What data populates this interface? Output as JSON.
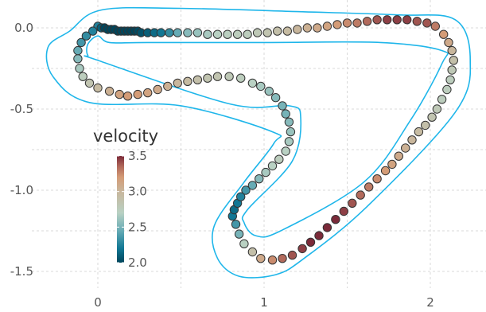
{
  "chart_data": {
    "type": "scatter",
    "title": "",
    "xlabel": "",
    "ylabel": "",
    "xlim": [
      -0.3,
      2.3
    ],
    "ylim": [
      -1.7,
      0.17
    ],
    "x_ticks": [
      {
        "value": 0,
        "label": "0"
      },
      {
        "value": 1,
        "label": "1"
      },
      {
        "value": 2,
        "label": "2"
      }
    ],
    "y_ticks": [
      {
        "value": 0.0,
        "label": "0.0"
      },
      {
        "value": -0.5,
        "label": "-0.5"
      },
      {
        "value": -1.0,
        "label": "-1.0"
      },
      {
        "value": -1.5,
        "label": "-1.5"
      }
    ],
    "grid": true,
    "legend": {
      "title": "velocity",
      "placement": "inside-left",
      "range": [
        2.0,
        3.5
      ],
      "ticks": [
        {
          "value": 3.5,
          "label": "3.5"
        },
        {
          "value": 3.0,
          "label": "3.0"
        },
        {
          "value": 2.5,
          "label": "2.5"
        },
        {
          "value": 2.0,
          "label": "2.0"
        }
      ]
    },
    "colorscale": [
      {
        "v": 2.0,
        "color": "#00465c"
      },
      {
        "v": 2.2,
        "color": "#117794"
      },
      {
        "v": 2.45,
        "color": "#66abb5"
      },
      {
        "v": 2.7,
        "color": "#b9d1c3"
      },
      {
        "v": 3.0,
        "color": "#c8b69c"
      },
      {
        "v": 3.2,
        "color": "#d49c77"
      },
      {
        "v": 3.35,
        "color": "#b26a5c"
      },
      {
        "v": 3.5,
        "color": "#7b2a39"
      }
    ],
    "track_color": "#1fb6ea",
    "track_inner": [
      [
        0,
        -0.05
      ],
      [
        0.07,
        -0.09
      ],
      [
        0.3,
        -0.09
      ],
      [
        1.0,
        -0.09
      ],
      [
        1.7,
        -0.09
      ],
      [
        2.07,
        -0.14
      ],
      [
        2.07,
        -0.22
      ],
      [
        1.88,
        -0.57
      ],
      [
        1.6,
        -0.95
      ],
      [
        1.1,
        -1.25
      ],
      [
        0.95,
        -1.28
      ],
      [
        0.88,
        -1.2
      ],
      [
        0.9,
        -1.12
      ],
      [
        1.17,
        -0.82
      ],
      [
        1.22,
        -0.55
      ],
      [
        1.15,
        -0.48
      ],
      [
        0.8,
        -0.47
      ],
      [
        0.0,
        -0.2
      ],
      [
        -0.06,
        -0.17
      ],
      [
        -0.06,
        -0.1
      ],
      [
        0,
        -0.05
      ]
    ],
    "track_outer": [
      [
        -0.17,
        -0.02
      ],
      [
        0.02,
        0.11
      ],
      [
        0.5,
        0.12
      ],
      [
        1.2,
        0.1
      ],
      [
        1.8,
        0.08
      ],
      [
        2.15,
        0.05
      ],
      [
        2.24,
        -0.2
      ],
      [
        2.15,
        -0.52
      ],
      [
        1.62,
        -1.1
      ],
      [
        1.24,
        -1.42
      ],
      [
        1.07,
        -1.52
      ],
      [
        0.85,
        -1.53
      ],
      [
        0.72,
        -1.42
      ],
      [
        0.7,
        -1.22
      ],
      [
        0.88,
        -0.95
      ],
      [
        1.06,
        -0.71
      ],
      [
        1.05,
        -0.64
      ],
      [
        0.5,
        -0.48
      ],
      [
        -0.05,
        -0.46
      ],
      [
        -0.27,
        -0.3
      ],
      [
        -0.3,
        -0.12
      ],
      [
        -0.17,
        -0.02
      ]
    ],
    "points": [
      {
        "x": 0.0,
        "y": 0.01,
        "v": 2.25
      },
      {
        "x": 0.02,
        "y": 0.0,
        "v": 2.1
      },
      {
        "x": 0.04,
        "y": 0.0,
        "v": 2.0
      },
      {
        "x": 0.06,
        "y": -0.01,
        "v": 2.0
      },
      {
        "x": 0.08,
        "y": -0.01,
        "v": 2.0
      },
      {
        "x": 0.1,
        "y": -0.01,
        "v": 2.0
      },
      {
        "x": 0.12,
        "y": -0.02,
        "v": 2.0
      },
      {
        "x": 0.14,
        "y": -0.02,
        "v": 2.0
      },
      {
        "x": 0.16,
        "y": -0.02,
        "v": 2.0
      },
      {
        "x": 0.18,
        "y": -0.02,
        "v": 2.0
      },
      {
        "x": 0.2,
        "y": -0.02,
        "v": 2.0
      },
      {
        "x": 0.22,
        "y": -0.02,
        "v": 2.0
      },
      {
        "x": 0.24,
        "y": -0.02,
        "v": 2.02
      },
      {
        "x": 0.26,
        "y": -0.03,
        "v": 2.05
      },
      {
        "x": 0.3,
        "y": -0.03,
        "v": 2.1
      },
      {
        "x": 0.34,
        "y": -0.03,
        "v": 2.15
      },
      {
        "x": 0.38,
        "y": -0.03,
        "v": 2.2
      },
      {
        "x": 0.43,
        "y": -0.03,
        "v": 2.3
      },
      {
        "x": 0.48,
        "y": -0.03,
        "v": 2.45
      },
      {
        "x": 0.54,
        "y": -0.03,
        "v": 2.55
      },
      {
        "x": 0.6,
        "y": -0.03,
        "v": 2.6
      },
      {
        "x": 0.66,
        "y": -0.04,
        "v": 2.65
      },
      {
        "x": 0.72,
        "y": -0.04,
        "v": 2.7
      },
      {
        "x": 0.78,
        "y": -0.04,
        "v": 2.72
      },
      {
        "x": 0.84,
        "y": -0.04,
        "v": 2.75
      },
      {
        "x": 0.9,
        "y": -0.04,
        "v": 2.75
      },
      {
        "x": 0.96,
        "y": -0.03,
        "v": 2.8
      },
      {
        "x": 1.02,
        "y": -0.03,
        "v": 2.85
      },
      {
        "x": 1.08,
        "y": -0.02,
        "v": 2.9
      },
      {
        "x": 1.14,
        "y": -0.02,
        "v": 2.95
      },
      {
        "x": 1.2,
        "y": -0.01,
        "v": 3.0
      },
      {
        "x": 1.26,
        "y": 0.0,
        "v": 3.05
      },
      {
        "x": 1.32,
        "y": 0.0,
        "v": 3.1
      },
      {
        "x": 1.38,
        "y": 0.01,
        "v": 3.15
      },
      {
        "x": 1.44,
        "y": 0.02,
        "v": 3.2
      },
      {
        "x": 1.5,
        "y": 0.03,
        "v": 3.25
      },
      {
        "x": 1.56,
        "y": 0.03,
        "v": 3.3
      },
      {
        "x": 1.62,
        "y": 0.04,
        "v": 3.35
      },
      {
        "x": 1.68,
        "y": 0.05,
        "v": 3.4
      },
      {
        "x": 1.74,
        "y": 0.05,
        "v": 3.45
      },
      {
        "x": 1.8,
        "y": 0.05,
        "v": 3.45
      },
      {
        "x": 1.86,
        "y": 0.05,
        "v": 3.45
      },
      {
        "x": 1.92,
        "y": 0.04,
        "v": 3.4
      },
      {
        "x": 1.98,
        "y": 0.03,
        "v": 3.4
      },
      {
        "x": 2.03,
        "y": 0.01,
        "v": 3.3
      },
      {
        "x": 2.08,
        "y": -0.04,
        "v": 3.2
      },
      {
        "x": 2.11,
        "y": -0.09,
        "v": 3.1
      },
      {
        "x": 2.13,
        "y": -0.14,
        "v": 3.0
      },
      {
        "x": 2.14,
        "y": -0.2,
        "v": 2.9
      },
      {
        "x": 2.13,
        "y": -0.26,
        "v": 2.8
      },
      {
        "x": 2.12,
        "y": -0.32,
        "v": 2.75
      },
      {
        "x": 2.1,
        "y": -0.38,
        "v": 2.75
      },
      {
        "x": 2.07,
        "y": -0.44,
        "v": 2.75
      },
      {
        "x": 2.04,
        "y": -0.5,
        "v": 2.8
      },
      {
        "x": 2.01,
        "y": -0.55,
        "v": 2.85
      },
      {
        "x": 1.97,
        "y": -0.6,
        "v": 2.9
      },
      {
        "x": 1.93,
        "y": -0.64,
        "v": 2.95
      },
      {
        "x": 1.89,
        "y": -0.69,
        "v": 3.0
      },
      {
        "x": 1.85,
        "y": -0.74,
        "v": 3.05
      },
      {
        "x": 1.81,
        "y": -0.79,
        "v": 3.1
      },
      {
        "x": 1.77,
        "y": -0.84,
        "v": 3.15
      },
      {
        "x": 1.73,
        "y": -0.88,
        "v": 3.2
      },
      {
        "x": 1.68,
        "y": -0.93,
        "v": 3.25
      },
      {
        "x": 1.63,
        "y": -0.98,
        "v": 3.3
      },
      {
        "x": 1.58,
        "y": -1.03,
        "v": 3.35
      },
      {
        "x": 1.53,
        "y": -1.08,
        "v": 3.4
      },
      {
        "x": 1.48,
        "y": -1.13,
        "v": 3.45
      },
      {
        "x": 1.43,
        "y": -1.18,
        "v": 3.5
      },
      {
        "x": 1.38,
        "y": -1.23,
        "v": 3.5
      },
      {
        "x": 1.33,
        "y": -1.28,
        "v": 3.5
      },
      {
        "x": 1.28,
        "y": -1.32,
        "v": 3.5
      },
      {
        "x": 1.23,
        "y": -1.36,
        "v": 3.45
      },
      {
        "x": 1.17,
        "y": -1.4,
        "v": 3.4
      },
      {
        "x": 1.11,
        "y": -1.42,
        "v": 3.35
      },
      {
        "x": 1.05,
        "y": -1.43,
        "v": 3.25
      },
      {
        "x": 0.98,
        "y": -1.42,
        "v": 3.1
      },
      {
        "x": 0.93,
        "y": -1.38,
        "v": 2.9
      },
      {
        "x": 0.88,
        "y": -1.33,
        "v": 2.7
      },
      {
        "x": 0.85,
        "y": -1.27,
        "v": 2.5
      },
      {
        "x": 0.83,
        "y": -1.21,
        "v": 2.35
      },
      {
        "x": 0.81,
        "y": -1.16,
        "v": 2.2
      },
      {
        "x": 0.82,
        "y": -1.12,
        "v": 2.15
      },
      {
        "x": 0.84,
        "y": -1.08,
        "v": 2.2
      },
      {
        "x": 0.86,
        "y": -1.04,
        "v": 2.25
      },
      {
        "x": 0.89,
        "y": -1.0,
        "v": 2.35
      },
      {
        "x": 0.93,
        "y": -0.97,
        "v": 2.45
      },
      {
        "x": 0.97,
        "y": -0.93,
        "v": 2.55
      },
      {
        "x": 1.01,
        "y": -0.89,
        "v": 2.65
      },
      {
        "x": 1.05,
        "y": -0.85,
        "v": 2.7
      },
      {
        "x": 1.09,
        "y": -0.81,
        "v": 2.75
      },
      {
        "x": 1.13,
        "y": -0.76,
        "v": 2.7
      },
      {
        "x": 1.15,
        "y": -0.7,
        "v": 2.65
      },
      {
        "x": 1.16,
        "y": -0.64,
        "v": 2.6
      },
      {
        "x": 1.15,
        "y": -0.58,
        "v": 2.55
      },
      {
        "x": 1.13,
        "y": -0.53,
        "v": 2.5
      },
      {
        "x": 1.11,
        "y": -0.48,
        "v": 2.5
      },
      {
        "x": 1.07,
        "y": -0.43,
        "v": 2.55
      },
      {
        "x": 1.03,
        "y": -0.39,
        "v": 2.6
      },
      {
        "x": 0.98,
        "y": -0.36,
        "v": 2.65
      },
      {
        "x": 0.93,
        "y": -0.34,
        "v": 2.7
      },
      {
        "x": 0.86,
        "y": -0.31,
        "v": 2.75
      },
      {
        "x": 0.79,
        "y": -0.3,
        "v": 2.8
      },
      {
        "x": 0.72,
        "y": -0.3,
        "v": 2.85
      },
      {
        "x": 0.66,
        "y": -0.31,
        "v": 2.85
      },
      {
        "x": 0.6,
        "y": -0.32,
        "v": 2.9
      },
      {
        "x": 0.54,
        "y": -0.33,
        "v": 2.95
      },
      {
        "x": 0.48,
        "y": -0.34,
        "v": 3.0
      },
      {
        "x": 0.42,
        "y": -0.36,
        "v": 3.05
      },
      {
        "x": 0.36,
        "y": -0.38,
        "v": 3.1
      },
      {
        "x": 0.3,
        "y": -0.4,
        "v": 3.15
      },
      {
        "x": 0.24,
        "y": -0.41,
        "v": 3.2
      },
      {
        "x": 0.18,
        "y": -0.42,
        "v": 3.2
      },
      {
        "x": 0.13,
        "y": -0.41,
        "v": 3.15
      },
      {
        "x": 0.07,
        "y": -0.39,
        "v": 3.05
      },
      {
        "x": 0.0,
        "y": -0.37,
        "v": 2.95
      },
      {
        "x": -0.05,
        "y": -0.34,
        "v": 2.85
      },
      {
        "x": -0.09,
        "y": -0.3,
        "v": 2.75
      },
      {
        "x": -0.11,
        "y": -0.25,
        "v": 2.65
      },
      {
        "x": -0.12,
        "y": -0.19,
        "v": 2.55
      },
      {
        "x": -0.12,
        "y": -0.14,
        "v": 2.45
      },
      {
        "x": -0.1,
        "y": -0.09,
        "v": 2.35
      },
      {
        "x": -0.07,
        "y": -0.05,
        "v": 2.3
      },
      {
        "x": -0.03,
        "y": -0.02,
        "v": 2.25
      }
    ]
  }
}
